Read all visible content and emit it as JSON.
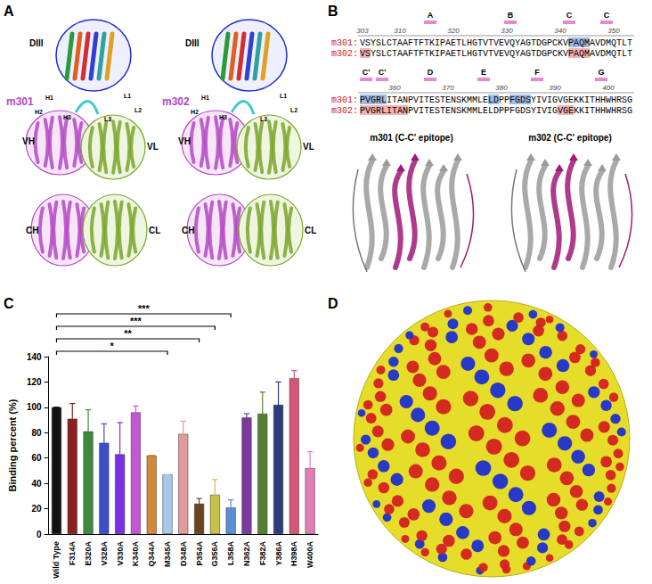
{
  "figure": {
    "panel_labels": [
      "A",
      "B",
      "C",
      "D"
    ],
    "A": {
      "structures": [
        {
          "name": "m301",
          "domains": [
            "DIII",
            "VH",
            "VL",
            "CH",
            "CL"
          ],
          "loops": [
            "H1",
            "H2",
            "H3",
            "L1",
            "L2",
            "L3"
          ]
        },
        {
          "name": "m302",
          "domains": [
            "DIII",
            "VH",
            "VL",
            "CH",
            "CL"
          ],
          "loops": [
            "H1",
            "H2",
            "H3",
            "L1",
            "L2",
            "L3"
          ]
        }
      ]
    },
    "B": {
      "rows": [
        {
          "start": 303,
          "numbers": [
            303,
            310,
            320,
            330,
            340,
            350
          ],
          "strands": [
            {
              "label": "A",
              "residue": 316
            },
            {
              "label": "B",
              "residue": 331
            },
            {
              "label": "C",
              "residue": 342
            },
            {
              "label": "C",
              "residue": 349
            }
          ],
          "sequences": [
            {
              "name": "m301:",
              "seq": "VSYSLCTAAFTFTKIPAETLHGTVTVEVQYAGTDGPCKVPAQMAVDMQTLT"
            },
            {
              "name": "m302:",
              "seq": "VSYSLCTAAFTFTKIPAETLHGTVTVEVQYAGTDGPCKVPAQMAVDMQTLT"
            }
          ]
        },
        {
          "start": 354,
          "numbers": [
            360,
            370,
            380,
            390,
            400
          ],
          "strands": [
            {
              "label": "C'",
              "residue": 355
            },
            {
              "label": "C'",
              "residue": 358
            },
            {
              "label": "D",
              "residue": 367
            },
            {
              "label": "E",
              "residue": 377
            },
            {
              "label": "F",
              "residue": 387
            },
            {
              "label": "G",
              "residue": 399
            }
          ],
          "sequences": [
            {
              "name": "m301:",
              "seq": "PVGRLITANPVITESTENSKMMLELDPPFGDSYIVIGVGEKKITHHWHRSG"
            },
            {
              "name": "m302:",
              "seq": "PVGRLITANPVITESTENSKMMLELDPPFGDSYIVIGVGEKKITHHWHRSG"
            }
          ]
        }
      ],
      "highlights": [
        {
          "name": "m301:",
          "ranges": [
            [
              342,
              345
            ],
            [
              354,
              358
            ],
            [
              378,
              379
            ],
            [
              382,
              385
            ]
          ]
        },
        {
          "name": "m302:",
          "ranges": [
            [
              303,
              304
            ],
            [
              342,
              345
            ],
            [
              354,
              362
            ],
            [
              391,
              393
            ]
          ]
        }
      ],
      "structure_titles": [
        "m301 (C-C' epitope)",
        "m302 (C-C' epitope)"
      ]
    }
  },
  "chart_data": {
    "type": "bar",
    "categories": [
      "Wild Type",
      "F314A",
      "E320A",
      "V328A",
      "V330A",
      "K340A",
      "Q344A",
      "M345A",
      "D348A",
      "P354A",
      "G356A",
      "L358A",
      "N362A",
      "F382A",
      "Y386A",
      "H398A",
      "W400A"
    ],
    "values": [
      100,
      91,
      81,
      72,
      63,
      96,
      62,
      47,
      79,
      24,
      31,
      21,
      92,
      95,
      102,
      123,
      52
    ],
    "errors": [
      0,
      12,
      17,
      15,
      25,
      5,
      0,
      0,
      10,
      4,
      12,
      6,
      3,
      17,
      18,
      6,
      13
    ],
    "colors": [
      "#111111",
      "#8b2020",
      "#3f8a3f",
      "#3b50c8",
      "#7a30e0",
      "#c455d4",
      "#d4883a",
      "#a9c8ea",
      "#e39a9a",
      "#6b4321",
      "#c8c048",
      "#5c8ed6",
      "#7b3a9e",
      "#567f33",
      "#2b3b7e",
      "#d35676",
      "#e27cb4"
    ],
    "ylabel": "Binding percent (%)",
    "ylim": [
      0,
      140
    ],
    "yticks": [
      0,
      20,
      40,
      60,
      80,
      100,
      120,
      140
    ],
    "grid": false,
    "significance": [
      {
        "from": "Wild Type",
        "to": "M345A",
        "label": "*"
      },
      {
        "from": "Wild Type",
        "to": "P354A",
        "label": "**"
      },
      {
        "from": "Wild Type",
        "to": "G356A",
        "label": "***"
      },
      {
        "from": "Wild Type",
        "to": "L358A",
        "label": "***"
      }
    ]
  }
}
